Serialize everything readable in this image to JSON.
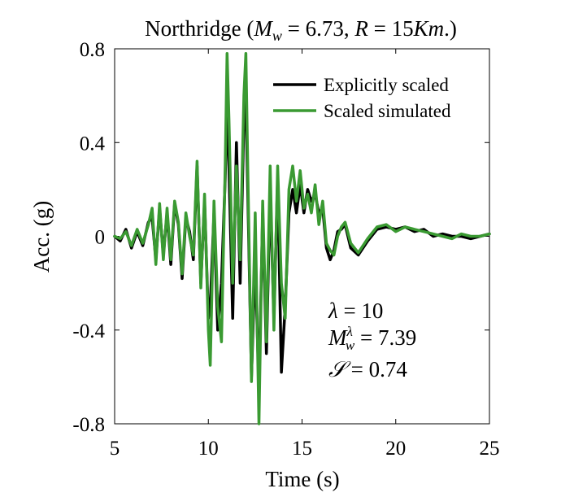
{
  "chart_data": {
    "type": "line",
    "title": {
      "prefix": "Northridge (",
      "mw_sym": "M",
      "mw_sub": "w",
      "mw_val": " = 6.73, ",
      "r_sym": "R",
      "r_val": " = 15",
      "unit": "Km",
      "suffix": ".)"
    },
    "xlabel": "Time (s)",
    "ylabel": "Acc.  (g)",
    "xlim": [
      5,
      25
    ],
    "ylim": [
      -0.8,
      0.8
    ],
    "xticks": [
      5,
      10,
      15,
      20,
      25
    ],
    "yticks": [
      -0.8,
      -0.4,
      0,
      0.4,
      0.8
    ],
    "ytick_labels": [
      "-0.8",
      "-0.4",
      "0",
      "0.4",
      "0.8"
    ],
    "grid": false,
    "legend_position": "top-right",
    "annotations": {
      "lambda_sym": "λ",
      "lambda_val": " = 10",
      "mw_sym": "M",
      "mw_sup": "λ",
      "mw_sub": "w",
      "mw_val": " = 7.39",
      "s_sym": "𝒮",
      "s_val": " = 0.74"
    },
    "series": [
      {
        "name": "Explicitly scaled",
        "color": "#000000",
        "x": [
          5.0,
          5.3,
          5.6,
          5.9,
          6.2,
          6.5,
          6.8,
          7.0,
          7.2,
          7.4,
          7.6,
          7.8,
          8.0,
          8.2,
          8.4,
          8.6,
          8.8,
          9.0,
          9.2,
          9.4,
          9.6,
          9.8,
          10.0,
          10.1,
          10.3,
          10.5,
          10.7,
          10.9,
          11.0,
          11.1,
          11.3,
          11.5,
          11.7,
          11.9,
          12.0,
          12.1,
          12.3,
          12.5,
          12.7,
          12.9,
          13.1,
          13.3,
          13.5,
          13.7,
          13.9,
          14.1,
          14.3,
          14.5,
          14.7,
          14.9,
          15.1,
          15.3,
          15.5,
          15.7,
          15.9,
          16.1,
          16.3,
          16.5,
          16.7,
          16.9,
          17.1,
          17.3,
          17.6,
          18.0,
          18.5,
          19.0,
          19.5,
          20.0,
          20.5,
          21.0,
          21.5,
          22.0,
          22.5,
          23.0,
          23.5,
          24.0,
          24.5,
          25.0
        ],
        "values": [
          0.0,
          -0.02,
          0.03,
          -0.05,
          0.02,
          -0.04,
          0.06,
          0.08,
          -0.1,
          0.12,
          -0.08,
          0.1,
          -0.12,
          0.14,
          0.05,
          -0.18,
          0.08,
          0.02,
          -0.1,
          0.3,
          -0.2,
          0.15,
          -0.35,
          -0.3,
          0.1,
          -0.4,
          -0.2,
          0.25,
          0.58,
          0.3,
          -0.35,
          0.4,
          -0.2,
          0.5,
          0.58,
          0.2,
          -0.6,
          -0.1,
          -0.65,
          0.1,
          -0.5,
          0.2,
          -0.35,
          0.25,
          -0.58,
          -0.3,
          0.1,
          0.2,
          0.1,
          0.22,
          0.1,
          0.2,
          0.15,
          0.18,
          0.1,
          0.12,
          -0.05,
          -0.1,
          -0.06,
          0.02,
          0.03,
          0.05,
          -0.05,
          -0.08,
          -0.02,
          0.03,
          0.04,
          0.03,
          0.04,
          0.02,
          0.03,
          0.0,
          0.01,
          0.0,
          0.0,
          -0.01,
          0.0,
          0.01
        ]
      },
      {
        "name": "Scaled simulated",
        "color": "#3a9a32",
        "x": [
          5.0,
          5.3,
          5.6,
          5.9,
          6.2,
          6.5,
          6.8,
          7.0,
          7.2,
          7.4,
          7.6,
          7.8,
          8.0,
          8.2,
          8.4,
          8.6,
          8.8,
          9.0,
          9.2,
          9.4,
          9.6,
          9.8,
          10.0,
          10.1,
          10.3,
          10.5,
          10.7,
          10.9,
          11.0,
          11.1,
          11.3,
          11.5,
          11.7,
          11.9,
          12.0,
          12.1,
          12.3,
          12.5,
          12.7,
          12.9,
          13.1,
          13.3,
          13.5,
          13.7,
          13.9,
          14.1,
          14.3,
          14.5,
          14.7,
          14.9,
          15.1,
          15.3,
          15.5,
          15.7,
          15.9,
          16.1,
          16.3,
          16.5,
          16.7,
          16.9,
          17.1,
          17.3,
          17.6,
          18.0,
          18.5,
          19.0,
          19.5,
          20.0,
          20.5,
          21.0,
          21.5,
          22.0,
          22.5,
          23.0,
          23.5,
          24.0,
          24.5,
          25.0
        ],
        "values": [
          0.0,
          -0.01,
          0.02,
          -0.04,
          0.03,
          -0.03,
          0.05,
          0.12,
          -0.12,
          0.14,
          -0.1,
          0.12,
          -0.1,
          0.15,
          0.06,
          -0.16,
          0.1,
          0.0,
          -0.08,
          0.32,
          -0.22,
          0.18,
          -0.4,
          -0.55,
          0.15,
          -0.3,
          -0.45,
          0.3,
          0.78,
          0.5,
          -0.2,
          0.3,
          -0.1,
          0.6,
          0.78,
          0.3,
          -0.62,
          0.1,
          -0.8,
          0.15,
          -0.45,
          0.3,
          -0.4,
          0.3,
          -0.2,
          -0.35,
          0.2,
          0.3,
          0.15,
          0.28,
          0.12,
          0.18,
          0.1,
          0.22,
          0.05,
          0.15,
          -0.03,
          -0.06,
          -0.08,
          0.0,
          0.04,
          0.06,
          -0.03,
          -0.07,
          -0.01,
          0.04,
          0.05,
          0.02,
          0.04,
          0.03,
          0.02,
          0.01,
          0.0,
          -0.01,
          0.01,
          0.0,
          0.0,
          0.01
        ]
      }
    ]
  }
}
